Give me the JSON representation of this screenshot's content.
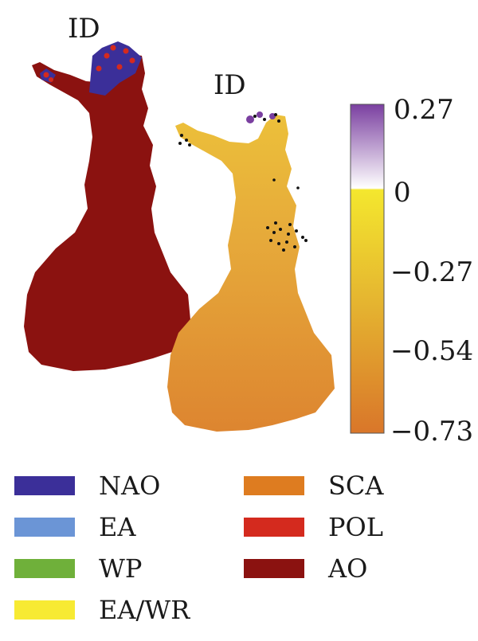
{
  "maps": [
    {
      "label": "ID",
      "variant": "categorical",
      "fill": "AO"
    },
    {
      "label": "ID",
      "variant": "continuous"
    }
  ],
  "colorbar": {
    "ticks": [
      "0.27",
      "0",
      "−0.27",
      "−0.54",
      "−0.73"
    ],
    "colors": {
      "top": "#7a3fa0",
      "zero": "#ffffff",
      "yellow": "#f4e72e",
      "mid": "#e0b030",
      "bottom": "#d9762a"
    }
  },
  "legend": [
    {
      "label": "NAO",
      "color": "#3b2f99"
    },
    {
      "label": "EA",
      "color": "#6b95d6"
    },
    {
      "label": "WP",
      "color": "#6fb03a"
    },
    {
      "label": "EA/WR",
      "color": "#f7ea33"
    },
    {
      "label": "SCA",
      "color": "#de7c20"
    },
    {
      "label": "POL",
      "color": "#d42a1e"
    },
    {
      "label": "AO",
      "color": "#8b1210"
    }
  ]
}
